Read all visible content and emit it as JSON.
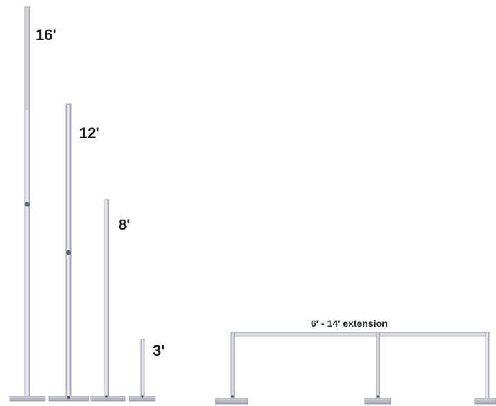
{
  "labels": {
    "pole_16": "16'",
    "pole_12": "12'",
    "pole_8": "8'",
    "pole_3": "3'",
    "extension": "6' - 14' extension"
  }
}
